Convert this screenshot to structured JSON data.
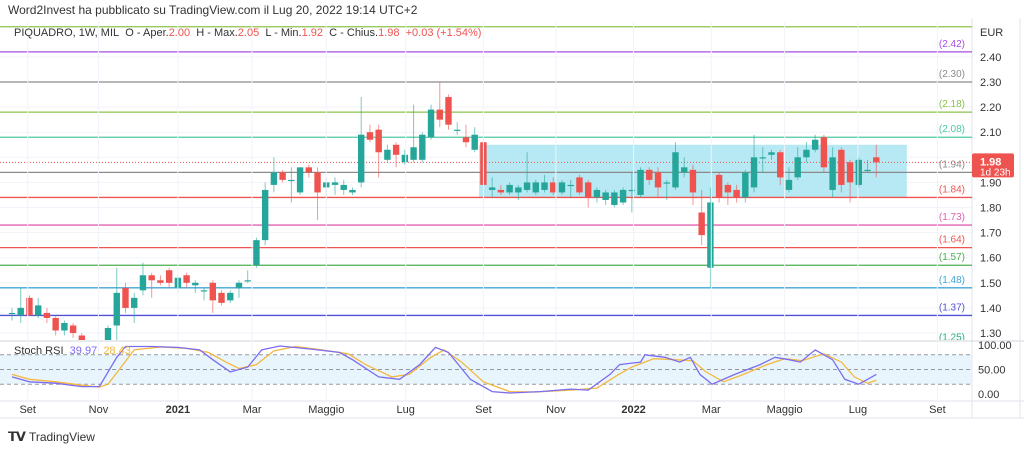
{
  "header": {
    "published": "Word2Invest ha pubblicato su TradingView.com il Lug 20, 2022 19:14 UTC+2"
  },
  "legend": {
    "symbol": "PIQUADRO, 1W, MIL",
    "open_label": "O - Aper.",
    "open": "2.00",
    "high_label": "H - Max.",
    "high": "2.05",
    "low_label": "L - Min.",
    "low": "1.92",
    "close_label": "C - Chius.",
    "close": "1.98",
    "change": "+0.03 (+1.54%)"
  },
  "rsi_legend": {
    "name": "Stoch RSI",
    "k": "39.97",
    "d": "28.43"
  },
  "price_axis": {
    "currency": "EUR",
    "ticks": [
      "2.40",
      "2.30",
      "2.20",
      "2.10",
      "1.90",
      "1.80",
      "1.70",
      "1.60",
      "1.50",
      "1.40",
      "1.30"
    ],
    "last_price": "1.98",
    "countdown": "1d 23h"
  },
  "rsi_axis": {
    "ticks": [
      "100.00",
      "50.00",
      "0.00"
    ]
  },
  "time_axis": {
    "labels": [
      {
        "text": "Set",
        "index": 1.8
      },
      {
        "text": "Nov",
        "index": 9.9
      },
      {
        "text": "2021",
        "index": 19
      },
      {
        "text": "Mar",
        "index": 27.5
      },
      {
        "text": "Maggio",
        "index": 36
      },
      {
        "text": "Lug",
        "index": 45.1
      },
      {
        "text": "Set",
        "index": 54
      },
      {
        "text": "Nov",
        "index": 62.3
      },
      {
        "text": "2022",
        "index": 71.2
      },
      {
        "text": "Mar",
        "index": 80.1
      },
      {
        "text": "Maggio",
        "index": 88.5
      },
      {
        "text": "Lug",
        "index": 96.9
      },
      {
        "text": "Set",
        "index": 106
      }
    ]
  },
  "footer": {
    "brand": "TradingView"
  },
  "colors": {
    "up": "#26a69a",
    "down": "#ef5350",
    "box": "#b2e8f2",
    "k": "#7b6cf0",
    "d": "#f5b83d"
  },
  "chart_data": {
    "type": "candlestick",
    "title": "PIQUADRO, 1W, MIL",
    "ylabel": "EUR",
    "ylim": [
      1.22,
      2.55
    ],
    "candles_ohlc": [
      [
        1.38,
        1.4,
        1.35,
        1.38
      ],
      [
        1.37,
        1.48,
        1.34,
        1.4
      ],
      [
        1.44,
        1.45,
        1.37,
        1.37
      ],
      [
        1.37,
        1.44,
        1.36,
        1.41
      ],
      [
        1.38,
        1.4,
        1.34,
        1.36
      ],
      [
        1.36,
        1.37,
        1.29,
        1.31
      ],
      [
        1.31,
        1.35,
        1.29,
        1.34
      ],
      [
        1.33,
        1.34,
        1.28,
        1.3
      ],
      [
        1.29,
        1.3,
        1.24,
        1.25
      ],
      [
        1.25,
        1.27,
        1.2,
        1.22
      ],
      [
        1.22,
        1.24,
        1.18,
        1.2
      ],
      [
        1.22,
        1.33,
        1.2,
        1.32
      ],
      [
        1.33,
        1.56,
        1.25,
        1.46
      ],
      [
        1.48,
        1.5,
        1.38,
        1.4
      ],
      [
        1.4,
        1.46,
        1.34,
        1.44
      ],
      [
        1.47,
        1.58,
        1.45,
        1.53
      ],
      [
        1.53,
        1.54,
        1.44,
        1.51
      ],
      [
        1.51,
        1.53,
        1.49,
        1.5
      ],
      [
        1.55,
        1.56,
        1.48,
        1.5
      ],
      [
        1.48,
        1.53,
        1.46,
        1.52
      ],
      [
        1.53,
        1.54,
        1.48,
        1.5
      ],
      [
        1.49,
        1.51,
        1.46,
        1.5
      ],
      [
        1.47,
        1.48,
        1.43,
        1.47
      ],
      [
        1.5,
        1.51,
        1.38,
        1.43
      ],
      [
        1.46,
        1.47,
        1.41,
        1.42
      ],
      [
        1.43,
        1.47,
        1.42,
        1.46
      ],
      [
        1.48,
        1.51,
        1.44,
        1.5
      ],
      [
        1.51,
        1.55,
        1.5,
        1.51
      ],
      [
        1.57,
        1.68,
        1.56,
        1.67
      ],
      [
        1.67,
        1.9,
        1.65,
        1.87
      ],
      [
        1.89,
        2.0,
        1.86,
        1.94
      ],
      [
        1.94,
        1.95,
        1.9,
        1.91
      ],
      [
        1.91,
        1.96,
        1.82,
        1.91
      ],
      [
        1.86,
        1.96,
        1.85,
        1.96
      ],
      [
        1.96,
        1.97,
        1.92,
        1.94
      ],
      [
        1.94,
        1.96,
        1.75,
        1.86
      ],
      [
        1.88,
        1.92,
        1.84,
        1.9
      ],
      [
        1.89,
        1.92,
        1.85,
        1.9
      ],
      [
        1.87,
        1.91,
        1.85,
        1.89
      ],
      [
        1.86,
        1.88,
        1.85,
        1.87
      ],
      [
        1.9,
        2.24,
        1.88,
        2.09
      ],
      [
        2.1,
        2.13,
        2.06,
        2.07
      ],
      [
        2.11,
        2.13,
        1.92,
        2.02
      ],
      [
        1.99,
        2.05,
        1.98,
        2.03
      ],
      [
        2.05,
        2.06,
        1.96,
        2.01
      ],
      [
        1.98,
        2.03,
        1.97,
        2.01
      ],
      [
        1.99,
        2.21,
        1.98,
        2.04
      ],
      [
        1.99,
        2.1,
        1.98,
        2.09
      ],
      [
        2.08,
        2.21,
        2.07,
        2.19
      ],
      [
        2.19,
        2.3,
        2.12,
        2.15
      ],
      [
        2.24,
        2.25,
        2.11,
        2.13
      ],
      [
        2.11,
        2.14,
        2.09,
        2.11
      ],
      [
        2.08,
        2.13,
        2.04,
        2.06
      ],
      [
        2.03,
        2.12,
        2.02,
        2.09
      ],
      [
        2.06,
        2.08,
        1.87,
        1.89
      ],
      [
        1.87,
        1.92,
        1.84,
        1.88
      ],
      [
        1.87,
        1.89,
        1.85,
        1.86
      ],
      [
        1.86,
        1.9,
        1.85,
        1.89
      ],
      [
        1.86,
        1.89,
        1.83,
        1.88
      ],
      [
        1.87,
        2.02,
        1.86,
        1.9
      ],
      [
        1.86,
        1.91,
        1.85,
        1.9
      ],
      [
        1.87,
        1.93,
        1.86,
        1.9
      ],
      [
        1.9,
        1.92,
        1.85,
        1.86
      ],
      [
        1.86,
        1.91,
        1.85,
        1.9
      ],
      [
        1.89,
        1.91,
        1.84,
        1.89
      ],
      [
        1.92,
        1.93,
        1.85,
        1.86
      ],
      [
        1.9,
        1.91,
        1.8,
        1.84
      ],
      [
        1.84,
        1.88,
        1.82,
        1.87
      ],
      [
        1.83,
        1.87,
        1.81,
        1.86
      ],
      [
        1.81,
        1.87,
        1.8,
        1.86
      ],
      [
        1.82,
        1.88,
        1.81,
        1.87
      ],
      [
        1.87,
        1.94,
        1.78,
        1.87
      ],
      [
        1.85,
        1.96,
        1.84,
        1.95
      ],
      [
        1.95,
        1.96,
        1.89,
        1.91
      ],
      [
        1.94,
        1.96,
        1.84,
        1.88
      ],
      [
        1.9,
        1.91,
        1.83,
        1.9
      ],
      [
        1.88,
        2.06,
        1.87,
        2.02
      ],
      [
        1.94,
        2.0,
        1.92,
        1.96
      ],
      [
        1.95,
        1.97,
        1.81,
        1.86
      ],
      [
        1.78,
        1.87,
        1.65,
        1.69
      ],
      [
        1.56,
        1.88,
        1.48,
        1.82
      ],
      [
        1.93,
        1.94,
        1.82,
        1.84
      ],
      [
        1.89,
        1.9,
        1.81,
        1.86
      ],
      [
        1.87,
        1.89,
        1.82,
        1.84
      ],
      [
        1.84,
        1.95,
        1.82,
        1.94
      ],
      [
        1.88,
        2.09,
        1.86,
        2.0
      ],
      [
        2.0,
        2.04,
        1.94,
        2.0
      ],
      [
        2.01,
        2.03,
        1.99,
        2.02
      ],
      [
        2.02,
        2.03,
        1.89,
        1.92
      ],
      [
        1.87,
        1.96,
        1.86,
        1.91
      ],
      [
        1.92,
        2.04,
        1.91,
        2.0
      ],
      [
        2.0,
        2.06,
        1.98,
        2.03
      ],
      [
        2.03,
        2.09,
        2.02,
        2.07
      ],
      [
        2.08,
        2.09,
        1.94,
        1.96
      ],
      [
        1.87,
        2.04,
        1.84,
        2.0
      ],
      [
        2.03,
        2.04,
        1.86,
        1.89
      ],
      [
        1.98,
        1.99,
        1.82,
        1.9
      ],
      [
        1.89,
        2.0,
        1.88,
        1.99
      ],
      [
        1.95,
        1.99,
        1.94,
        1.95
      ],
      [
        2.0,
        2.05,
        1.92,
        1.98
      ]
    ],
    "levels": [
      {
        "value": 2.52,
        "label": "",
        "color": "#8bc34a"
      },
      {
        "value": 2.42,
        "label": "(2.42)",
        "color": "#a64ee0"
      },
      {
        "value": 2.3,
        "label": "(2.30)",
        "color": "#8a8a8a"
      },
      {
        "value": 2.18,
        "label": "(2.18)",
        "color": "#8bc34a"
      },
      {
        "value": 2.08,
        "label": "(2.08)",
        "color": "#4dc9a4"
      },
      {
        "value": 1.94,
        "label": "(1.94)",
        "color": "#8a8a8a"
      },
      {
        "value": 1.84,
        "label": "(1.84)",
        "color": "#ef5350"
      },
      {
        "value": 1.73,
        "label": "(1.73)",
        "color": "#e060b0"
      },
      {
        "value": 1.64,
        "label": "(1.64)",
        "color": "#ef5350"
      },
      {
        "value": 1.57,
        "label": "(1.57)",
        "color": "#4caf50"
      },
      {
        "value": 1.48,
        "label": "(1.48)",
        "color": "#42a5d8"
      },
      {
        "value": 1.37,
        "label": "(1.37)",
        "color": "#5050d8"
      },
      {
        "value": 1.25,
        "label": "(1.25)",
        "color": "#26b07a"
      }
    ],
    "range_box": {
      "from_index": 53.5,
      "to_index": 102.5,
      "top": 2.05,
      "bottom": 1.84
    },
    "stoch_rsi": {
      "bands": [
        80,
        50,
        20
      ],
      "k_points": [
        [
          0,
          35
        ],
        [
          2,
          25
        ],
        [
          5,
          22
        ],
        [
          8,
          15
        ],
        [
          10,
          15
        ],
        [
          10.5,
          30
        ],
        [
          12,
          75
        ],
        [
          13,
          97
        ],
        [
          16,
          97
        ],
        [
          19,
          95
        ],
        [
          21.5,
          90
        ],
        [
          23,
          70
        ],
        [
          25,
          45
        ],
        [
          27,
          55
        ],
        [
          28.6,
          90
        ],
        [
          30.7,
          98
        ],
        [
          34,
          92
        ],
        [
          37.5,
          85
        ],
        [
          39,
          70
        ],
        [
          42,
          35
        ],
        [
          44.4,
          30
        ],
        [
          46.7,
          60
        ],
        [
          48.5,
          95
        ],
        [
          50,
          85
        ],
        [
          52.5,
          30
        ],
        [
          55,
          5
        ],
        [
          57,
          2
        ],
        [
          60.5,
          5
        ],
        [
          64,
          10
        ],
        [
          66,
          8
        ],
        [
          68.5,
          40
        ],
        [
          69.6,
          60
        ],
        [
          72,
          65
        ],
        [
          72.5,
          80
        ],
        [
          74.8,
          75
        ],
        [
          76.5,
          65
        ],
        [
          77.7,
          75
        ],
        [
          78.8,
          40
        ],
        [
          80.2,
          20
        ],
        [
          82.8,
          40
        ],
        [
          85.7,
          60
        ],
        [
          87.4,
          75
        ],
        [
          89,
          70
        ],
        [
          90.3,
          65
        ],
        [
          92,
          90
        ],
        [
          94,
          70
        ],
        [
          95.4,
          30
        ],
        [
          97,
          20
        ],
        [
          99,
          40
        ]
      ],
      "d_points": [
        [
          0,
          40
        ],
        [
          2,
          30
        ],
        [
          5,
          25
        ],
        [
          8,
          18
        ],
        [
          10,
          14
        ],
        [
          11,
          20
        ],
        [
          12.5,
          55
        ],
        [
          14,
          90
        ],
        [
          17,
          96
        ],
        [
          20,
          93
        ],
        [
          22.5,
          85
        ],
        [
          24.5,
          65
        ],
        [
          26,
          52
        ],
        [
          28,
          60
        ],
        [
          30,
          88
        ],
        [
          32.5,
          97
        ],
        [
          35.5,
          90
        ],
        [
          38.5,
          82
        ],
        [
          40.5,
          60
        ],
        [
          43.5,
          35
        ],
        [
          45.5,
          40
        ],
        [
          48,
          75
        ],
        [
          49.5,
          90
        ],
        [
          51.5,
          65
        ],
        [
          54,
          25
        ],
        [
          57,
          5
        ],
        [
          60,
          4
        ],
        [
          64,
          8
        ],
        [
          67,
          12
        ],
        [
          69.5,
          40
        ],
        [
          71,
          55
        ],
        [
          73.5,
          72
        ],
        [
          76,
          70
        ],
        [
          78,
          68
        ],
        [
          79.5,
          45
        ],
        [
          81.5,
          25
        ],
        [
          83.5,
          38
        ],
        [
          86.5,
          60
        ],
        [
          88.5,
          72
        ],
        [
          90.5,
          68
        ],
        [
          93,
          82
        ],
        [
          95,
          65
        ],
        [
          96.5,
          35
        ],
        [
          98,
          22
        ],
        [
          99,
          28
        ]
      ]
    }
  }
}
